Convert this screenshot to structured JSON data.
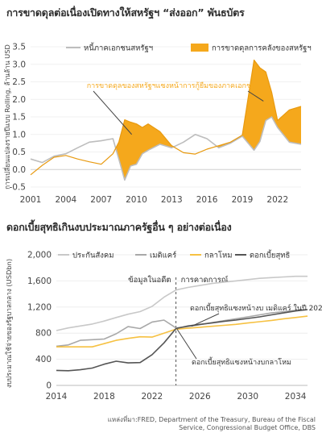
{
  "charts": [
    {
      "title": "การขาดดุลต่อเนื่องเปิดทางให้สหรัฐฯ “ส่งออก” พันธบัตร"
    },
    {
      "title": "ดอกเบี้ยสุทธิเกินงบประมาณภาครัฐอื่น ๆ อย่างต่อเนื่อง"
    }
  ],
  "source": "แหล่งที่มา:FRED, Department of the Treasury, Bureau of the Fiscal Service, Congressional Budget Office, DBS",
  "colors": {
    "orange": "#F5A81C",
    "grey": "#BDBDBD",
    "dark": "#555555",
    "yellow": "#F6C142"
  },
  "chart_data": [
    {
      "type": "area",
      "title": "การขาดดุลต่อเนื่องเปิดทางให้สหรัฐฯ “ส่งออก” พันธบัตร",
      "ylabel": "การเปลี่ยนแปลงรายปีแบบ Rolling, ล้านล้าน USD",
      "ylim": [
        -0.5,
        3.5
      ],
      "yticks": [
        "-0.5",
        "0.0",
        "0.5",
        "1.0",
        "1.5",
        "2.0",
        "2.5",
        "3.0",
        "3.5"
      ],
      "xlim": [
        2001,
        2024
      ],
      "xticks": [
        "2001",
        "2004",
        "2007",
        "2010",
        "2013",
        "2016",
        "2019",
        "2022"
      ],
      "legend": [
        "หนี้ภาคเอกชนสหรัฐฯ",
        "การขาดดุลการคลังของสหรัฐฯ"
      ],
      "annotation": "การขาดดุลของสหรัฐฯแซงหน้าการกู้ยืมของภาคเอกชน",
      "series": [
        {
          "name": "หนี้ภาคเอกชนสหรัฐฯ",
          "x": [
            2001.0,
            2002.0,
            2003.0,
            2004.0,
            2005.0,
            2006.0,
            2007.0,
            2008.0,
            2008.5,
            2009.0,
            2009.5,
            2010.0,
            2010.5,
            2011.0,
            2012.0,
            2013.0,
            2014.0,
            2015.0,
            2016.0,
            2017.0,
            2018.0,
            2019.0,
            2020.0,
            2020.5,
            2021.0,
            2021.5,
            2022.0,
            2023.0,
            2024.0
          ],
          "y": [
            0.3,
            0.2,
            0.38,
            0.45,
            0.62,
            0.78,
            0.82,
            0.88,
            0.3,
            -0.3,
            0.1,
            0.15,
            0.45,
            0.55,
            0.72,
            0.62,
            0.78,
            1.0,
            0.88,
            0.62,
            0.75,
            0.95,
            0.55,
            0.8,
            1.4,
            1.5,
            1.2,
            0.78,
            0.72
          ]
        },
        {
          "name": "การขาดดุลการคลังของสหรัฐฯ",
          "x": [
            2001.0,
            2002.0,
            2003.0,
            2004.0,
            2005.0,
            2006.0,
            2007.0,
            2008.0,
            2008.5,
            2009.0,
            2009.5,
            2010.0,
            2010.5,
            2011.0,
            2012.0,
            2013.0,
            2014.0,
            2015.0,
            2016.0,
            2017.0,
            2018.0,
            2019.0,
            2020.0,
            2020.5,
            2021.0,
            2021.5,
            2022.0,
            2023.0,
            2024.0
          ],
          "y": [
            -0.15,
            0.12,
            0.35,
            0.4,
            0.3,
            0.22,
            0.15,
            0.45,
            0.78,
            1.42,
            1.35,
            1.3,
            1.2,
            1.3,
            1.08,
            0.68,
            0.48,
            0.44,
            0.58,
            0.68,
            0.78,
            0.98,
            3.12,
            2.9,
            2.78,
            2.2,
            1.4,
            1.7,
            1.8
          ]
        }
      ]
    },
    {
      "type": "line",
      "title": "ดอกเบี้ยสุทธิเกินงบประมาณภาครัฐอื่น ๆ อย่างต่อเนื่อง",
      "ylabel": "งบประมาณใช้จ่ายของรัฐบาลกลาง (USDbn)",
      "ylim": [
        0,
        2000
      ],
      "yticks": [
        "0",
        "400",
        "800",
        "1,200",
        "1,600",
        "2,000"
      ],
      "xlim": [
        2014,
        2035
      ],
      "xticks": [
        "2014",
        "2018",
        "2022",
        "2026",
        "2030",
        "2034"
      ],
      "split_x": 2024,
      "region_labels": [
        "ข้อมูลในอดีต",
        "การคาดการณ์"
      ],
      "annotations": [
        "ดอกเบี้ยสุทธิแซงหน้างบ เมดิแคร์ ในปี 2025",
        "ดอกเบี้ยสุทธิแซงหน้างบกลาโหม"
      ],
      "x": [
        2014,
        2015,
        2016,
        2017,
        2018,
        2019,
        2020,
        2021,
        2022,
        2023,
        2024,
        2025,
        2026,
        2027,
        2028,
        2029,
        2030,
        2031,
        2032,
        2033,
        2034,
        2035
      ],
      "series": [
        {
          "name": "ประกันสังคม",
          "values": [
            840,
            880,
            910,
            940,
            985,
            1040,
            1090,
            1130,
            1210,
            1350,
            1460,
            1500,
            1530,
            1560,
            1580,
            1600,
            1620,
            1640,
            1650,
            1660,
            1670,
            1670
          ]
        },
        {
          "name": "เมดิแคร์",
          "values": [
            600,
            620,
            690,
            700,
            710,
            790,
            900,
            870,
            970,
            1000,
            880,
            900,
            930,
            960,
            990,
            1020,
            1050,
            1080,
            1110,
            1130,
            1150,
            1160
          ]
        },
        {
          "name": "กลาโหม",
          "values": [
            590,
            590,
            590,
            590,
            640,
            690,
            720,
            745,
            740,
            800,
            860,
            875,
            890,
            905,
            920,
            935,
            955,
            975,
            995,
            1020,
            1040,
            1060
          ]
        },
        {
          "name": "ดอกเบี้ยสุทธิ",
          "values": [
            230,
            225,
            240,
            265,
            325,
            370,
            345,
            350,
            470,
            650,
            870,
            910,
            935,
            955,
            980,
            1000,
            1025,
            1050,
            1080,
            1110,
            1140,
            1160
          ]
        }
      ]
    }
  ]
}
